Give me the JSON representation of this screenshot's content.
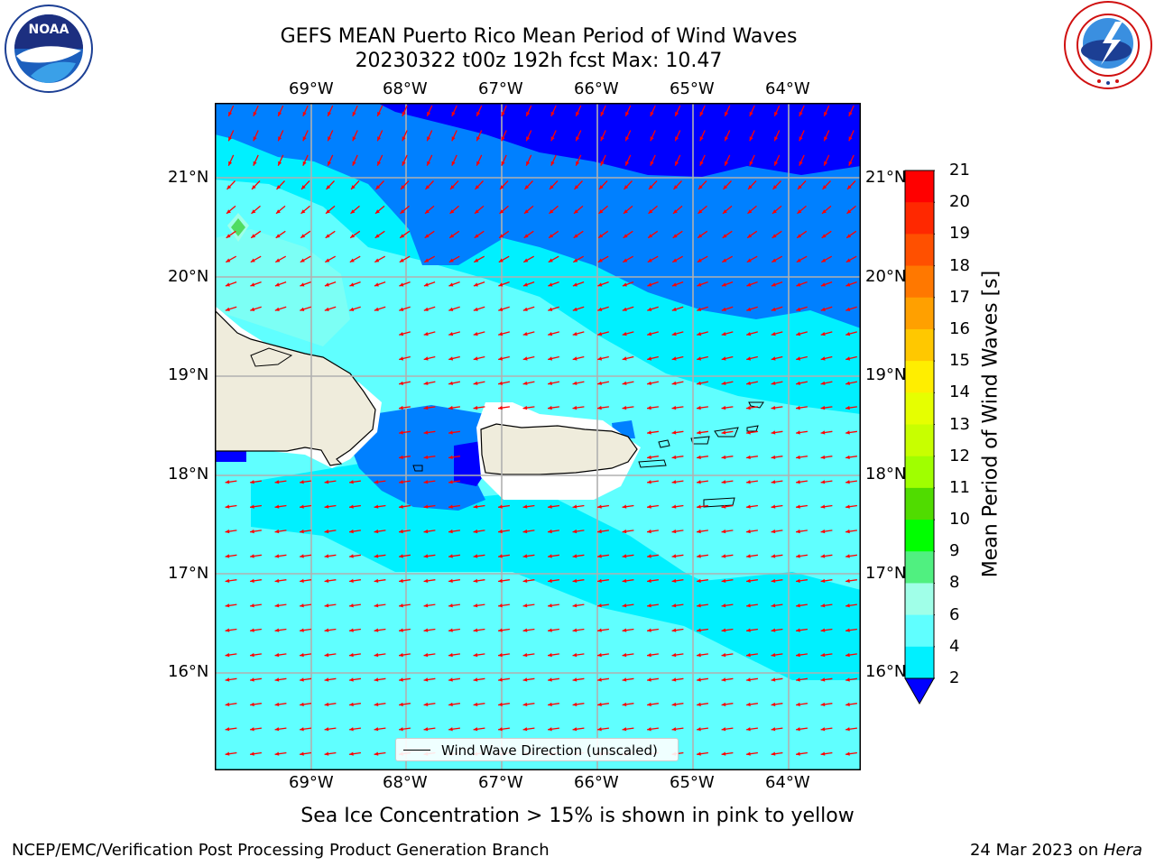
{
  "header": {
    "title_line1": "GEFS MEAN Puerto Rico Mean Period of Wind Waves",
    "title_line2": "20230322 t00z 192h fcst   Max: 10.47"
  },
  "logos": {
    "left": "noaa-logo",
    "right": "nws-logo"
  },
  "map": {
    "lon_labels": [
      "69°W",
      "68°W",
      "67°W",
      "66°W",
      "65°W",
      "64°W"
    ],
    "lat_labels": [
      "21°N",
      "20°N",
      "19°N",
      "18°N",
      "17°N",
      "16°N"
    ],
    "legend_label": "Wind Wave Direction (unscaled)",
    "arrow_color": "#ff0000",
    "land_color": "#efecdc"
  },
  "colorbar": {
    "label": "Mean Period of Wind Waves [s]",
    "ticks": [
      "21",
      "20",
      "19",
      "18",
      "17",
      "16",
      "15",
      "14",
      "13",
      "12",
      "11",
      "10",
      "9",
      "8",
      "6",
      "4",
      "2"
    ],
    "colors": [
      "#ff0000",
      "#ff2800",
      "#ff5000",
      "#ff7800",
      "#ffa000",
      "#ffc800",
      "#ffee00",
      "#e6ff00",
      "#c8ff00",
      "#a0ff00",
      "#50dc00",
      "#00ff00",
      "#50f080",
      "#a0ffe8",
      "#60ffff",
      "#00f0ff",
      "#0080ff",
      "#0000ff"
    ]
  },
  "notes": {
    "sea_ice": "Sea Ice Concentration > 15% is shown in pink to yellow"
  },
  "footer": {
    "left": "NCEP/EMC/Verification Post Processing Product Generation Branch",
    "right_date": "24 Mar 2023 on ",
    "right_host": "Hera"
  }
}
